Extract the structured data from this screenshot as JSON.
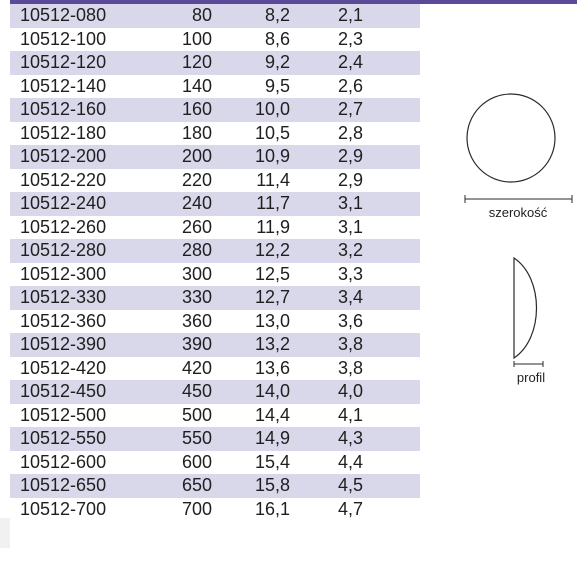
{
  "table": {
    "rows": [
      {
        "code": "10512-080",
        "size": "80",
        "width": "8,2",
        "profile": "2,1"
      },
      {
        "code": "10512-100",
        "size": "100",
        "width": "8,6",
        "profile": "2,3"
      },
      {
        "code": "10512-120",
        "size": "120",
        "width": "9,2",
        "profile": "2,4"
      },
      {
        "code": "10512-140",
        "size": "140",
        "width": "9,5",
        "profile": "2,6"
      },
      {
        "code": "10512-160",
        "size": "160",
        "width": "10,0",
        "profile": "2,7"
      },
      {
        "code": "10512-180",
        "size": "180",
        "width": "10,5",
        "profile": "2,8"
      },
      {
        "code": "10512-200",
        "size": "200",
        "width": "10,9",
        "profile": "2,9"
      },
      {
        "code": "10512-220",
        "size": "220",
        "width": "11,4",
        "profile": "2,9"
      },
      {
        "code": "10512-240",
        "size": "240",
        "width": "11,7",
        "profile": "3,1"
      },
      {
        "code": "10512-260",
        "size": "260",
        "width": "11,9",
        "profile": "3,1"
      },
      {
        "code": "10512-280",
        "size": "280",
        "width": "12,2",
        "profile": "3,2"
      },
      {
        "code": "10512-300",
        "size": "300",
        "width": "12,5",
        "profile": "3,3"
      },
      {
        "code": "10512-330",
        "size": "330",
        "width": "12,7",
        "profile": "3,4"
      },
      {
        "code": "10512-360",
        "size": "360",
        "width": "13,0",
        "profile": "3,6"
      },
      {
        "code": "10512-390",
        "size": "390",
        "width": "13,2",
        "profile": "3,8"
      },
      {
        "code": "10512-420",
        "size": "420",
        "width": "13,6",
        "profile": "3,8"
      },
      {
        "code": "10512-450",
        "size": "450",
        "width": "14,0",
        "profile": "4,0"
      },
      {
        "code": "10512-500",
        "size": "500",
        "width": "14,4",
        "profile": "4,1"
      },
      {
        "code": "10512-550",
        "size": "550",
        "width": "14,9",
        "profile": "4,3"
      },
      {
        "code": "10512-600",
        "size": "600",
        "width": "15,4",
        "profile": "4,4"
      },
      {
        "code": "10512-650",
        "size": "650",
        "width": "15,8",
        "profile": "4,5"
      },
      {
        "code": "10512-700",
        "size": "700",
        "width": "16,1",
        "profile": "4,7"
      }
    ]
  },
  "diagrams": {
    "width_label": "szerokość",
    "profile_label": "profil"
  },
  "colors": {
    "accent": "#5b4a9a",
    "row_stripe": "#d9d7ea"
  }
}
